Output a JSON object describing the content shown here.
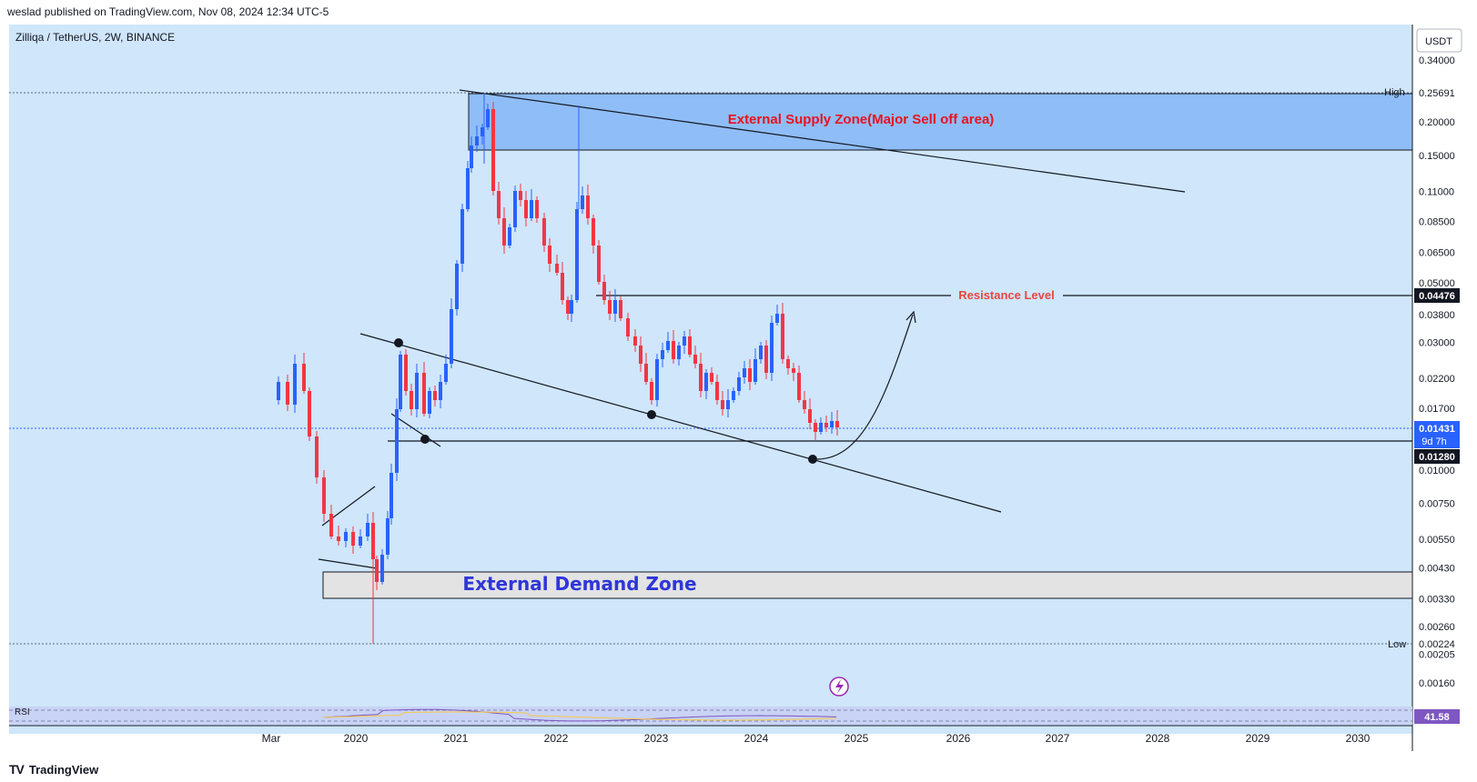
{
  "header": {
    "published_text": "weslad published on TradingView.com, Nov 08, 2024 12:34 UTC-5"
  },
  "symbol_info": "Zilliqa / TetherUS, 2W, BINANCE",
  "currency_button": "USDT",
  "footer": {
    "logo_mark": "TV",
    "logo_text": "TradingView"
  },
  "colors": {
    "background": "#cfe6fb",
    "up_candle": "#2962ff",
    "down_candle": "#f23645",
    "supply_zone": "#8fbdf7",
    "demand_zone": "#e3e3e3"
  },
  "chart_data": {
    "type": "candlestick",
    "price_scale": "log",
    "y_ticks": [
      "0.34000",
      "0.20000",
      "0.15000",
      "0.11000",
      "0.08500",
      "0.06500",
      "0.05000",
      "0.03800",
      "0.03000",
      "0.02200",
      "0.01700",
      "0.01000",
      "0.00750",
      "0.00550",
      "0.00430",
      "0.00330",
      "0.00260",
      "0.00205",
      "0.00160"
    ],
    "x_ticks": [
      "Mar",
      "2020",
      "2021",
      "2022",
      "2023",
      "2024",
      "2025",
      "2026",
      "2027",
      "2028",
      "2029",
      "2030"
    ],
    "price_labels": {
      "high": {
        "label": "High",
        "value": "0.25691"
      },
      "low": {
        "label": "Low",
        "value": "0.00224"
      },
      "resistance": {
        "value": "0.04476"
      },
      "current": {
        "value": "0.01431",
        "countdown": "9d 7h"
      },
      "support": {
        "value": "0.01280"
      }
    },
    "annotations": {
      "supply_zone": "External Supply Zone(Major Sell off area)",
      "demand_zone": "External Demand Zone",
      "resistance": "Resistance Level"
    },
    "rsi": {
      "label": "RSI",
      "value": "41.58"
    },
    "candles_range": {
      "start": "2019-03",
      "end": "2024-11",
      "high": 0.25691,
      "low": 0.00224
    }
  }
}
